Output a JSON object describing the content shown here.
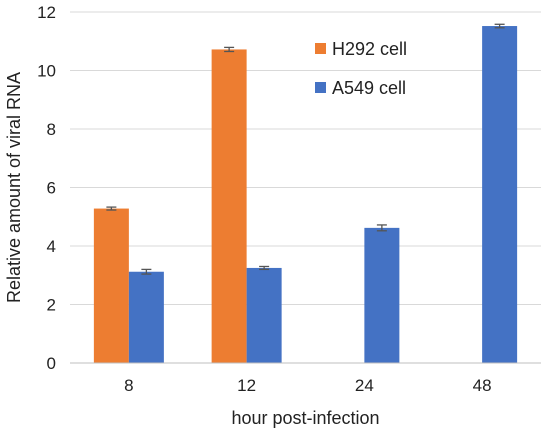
{
  "chart_data": {
    "type": "bar",
    "categories": [
      "8",
      "12",
      "24",
      "48"
    ],
    "series": [
      {
        "name": "H292 cell",
        "color": "#ED7D31",
        "values": [
          5.28,
          10.72,
          null,
          null
        ],
        "errors": [
          0.05,
          0.07,
          null,
          null
        ]
      },
      {
        "name": "A549 cell",
        "color": "#4472C4",
        "values": [
          3.12,
          3.25,
          4.62,
          11.52
        ],
        "errors": [
          0.08,
          0.05,
          0.1,
          0.06
        ]
      }
    ],
    "xlabel": "hour post-infection",
    "ylabel": "Relative amount of viral RNA",
    "ylim": [
      0,
      12
    ],
    "yticks": [
      "0",
      "2",
      "4",
      "6",
      "8",
      "10",
      "12"
    ],
    "grid": true,
    "legend": "top-right"
  }
}
